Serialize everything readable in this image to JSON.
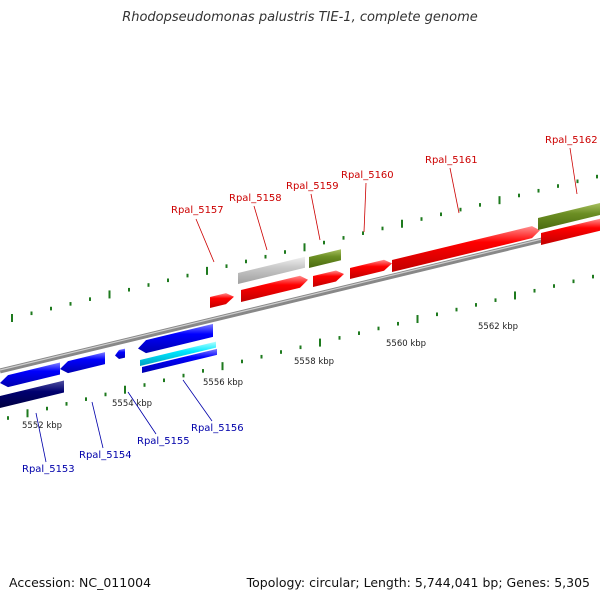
{
  "title": "Rhodopseudomonas palustris TIE-1, complete genome",
  "footer": {
    "accession": "Accession: NC_011004",
    "topology": "Topology: circular; Length: 5,744,041 bp; Genes: 5,305"
  },
  "colors": {
    "backbone": "#808080",
    "forward_gene": "#ff0000",
    "reverse_gene": "#0000ff",
    "forward_label": "#cc0000",
    "reverse_label": "#0000aa",
    "tick": "#1e7a1e"
  },
  "kbp_labels": [
    "5552 kbp",
    "5554 kbp",
    "5556 kbp",
    "5558 kbp",
    "5560 kbp",
    "5562 kbp"
  ],
  "forward_labels": [
    "Rpal_5157",
    "Rpal_5158",
    "Rpal_5159",
    "Rpal_5160",
    "Rpal_5161",
    "Rpal_5162"
  ],
  "reverse_labels": [
    "Rpal_5153",
    "Rpal_5154",
    "Rpal_5155",
    "Rpal_5156"
  ]
}
